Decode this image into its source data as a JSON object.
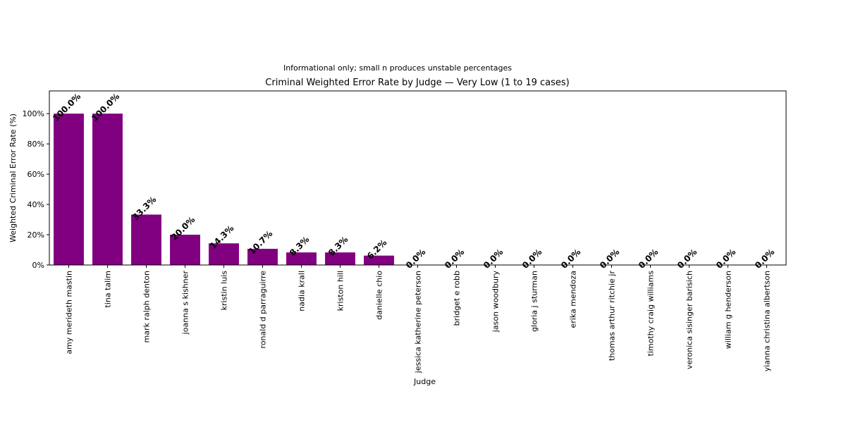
{
  "chart_data": {
    "type": "bar",
    "subtitle": "Informational only; small n produces unstable percentages",
    "title": "Criminal Weighted Error Rate by Judge — Very Low (1 to 19 cases)",
    "xlabel": "Judge",
    "ylabel": "Weighted Criminal Error Rate (%)",
    "ylim": [
      0,
      115
    ],
    "yticks": [
      0,
      20,
      40,
      60,
      80,
      100
    ],
    "ytick_labels": [
      "0%",
      "20%",
      "40%",
      "60%",
      "80%",
      "100%"
    ],
    "grid": false,
    "legend": "none",
    "bar_color": "#800080",
    "categories": [
      "amy merideth mastin",
      "tina talim",
      "mark ralph denton",
      "joanna s kishner",
      "kristin luis",
      "ronald d parraguirre",
      "nadia krall",
      "kriston hill",
      "danielle chio",
      "jessica katherine peterson",
      "bridget e robb",
      "jason woodbury",
      "gloria j sturman",
      "erika mendoza",
      "thomas arthur ritchie jr",
      "timothy craig williams",
      "veronica sisinger barisich",
      "william g henderson",
      "yianna christina albertson"
    ],
    "values": [
      100.0,
      100.0,
      33.3,
      20.0,
      14.3,
      10.7,
      8.3,
      8.3,
      6.2,
      0.0,
      0.0,
      0.0,
      0.0,
      0.0,
      0.0,
      0.0,
      0.0,
      0.0,
      0.0
    ],
    "data_labels": [
      "100.0%",
      "100.0%",
      "33.3%",
      "20.0%",
      "14.3%",
      "10.7%",
      "8.3%",
      "8.3%",
      "6.2%",
      "0.0%",
      "0.0%",
      "0.0%",
      "0.0%",
      "0.0%",
      "0.0%",
      "0.0%",
      "0.0%",
      "0.0%",
      "0.0%"
    ]
  }
}
